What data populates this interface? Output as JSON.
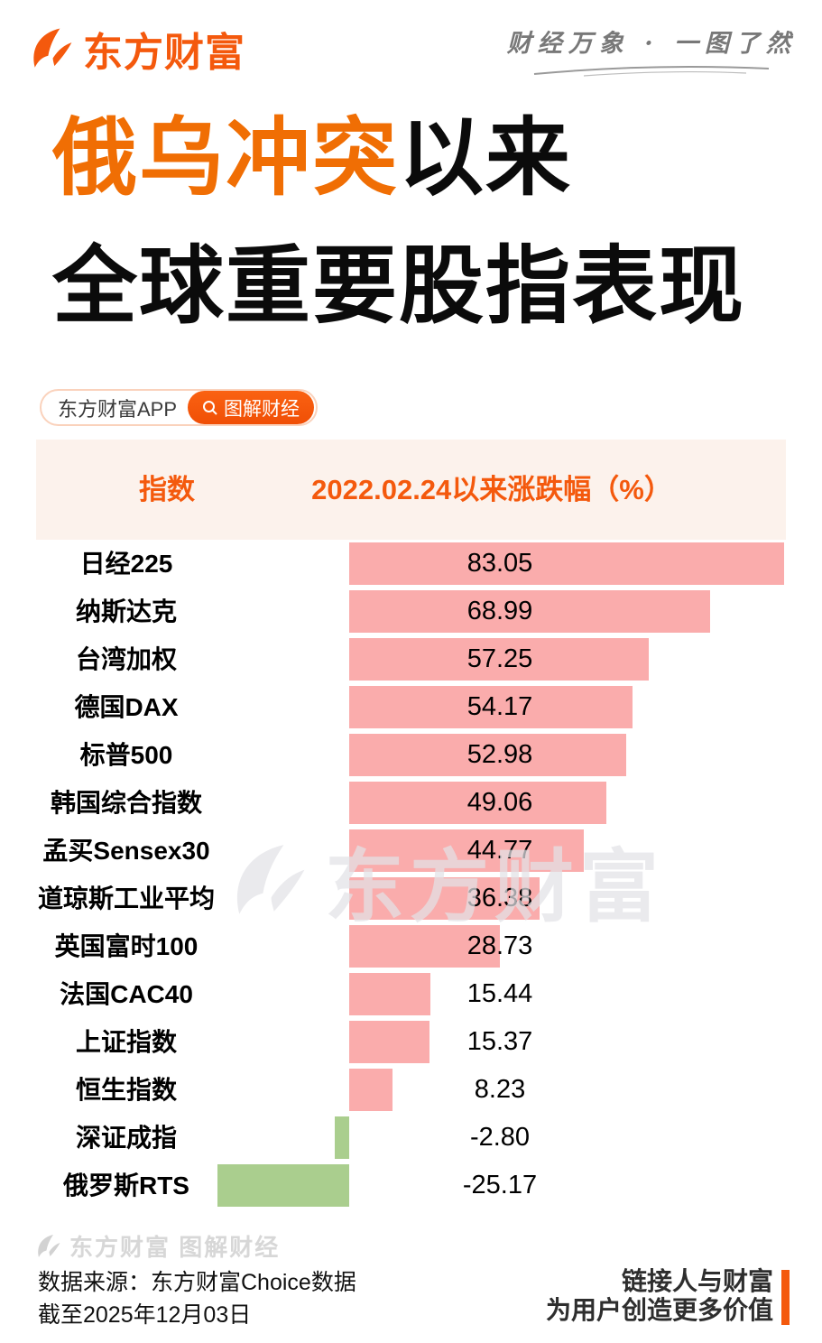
{
  "brand": {
    "logo_text": "东方财富",
    "tagline": "财经万象 · 一图了然"
  },
  "title": {
    "highlight": "俄乌冲突",
    "line1_rest": "以来",
    "line2": "全球重要股指表现"
  },
  "search": {
    "app_label": "东方财富APP",
    "button_label": "图解财经"
  },
  "table_header": {
    "col1": "指数",
    "col2": "2022.02.24以来涨跌幅（%）"
  },
  "chart_data": {
    "type": "bar",
    "orientation": "horizontal",
    "title": "俄乌冲突以来全球重要股指表现",
    "xlabel": "2022.02.24以来涨跌幅（%）",
    "categories": [
      "日经225",
      "纳斯达克",
      "台湾加权",
      "德国DAX",
      "标普500",
      "韩国综合指数",
      "孟买Sensex30",
      "道琼斯工业平均",
      "英国富时100",
      "法国CAC40",
      "上证指数",
      "恒生指数",
      "深证成指",
      "俄罗斯RTS"
    ],
    "values": [
      83.05,
      68.99,
      57.25,
      54.17,
      52.98,
      49.06,
      44.77,
      36.38,
      28.73,
      15.44,
      15.37,
      8.23,
      -2.8,
      -25.17
    ],
    "positive_color": "#FAACAC",
    "negative_color": "#AACE8E",
    "grid": false,
    "legend": false
  },
  "watermark": {
    "center_text": "东方财富",
    "footer_text": "东方财富 图解财经"
  },
  "footer": {
    "source_line1": "数据来源：东方财富Choice数据",
    "source_line2": "截至2025年12月03日",
    "slogan_line1": "链接人与财富",
    "slogan_line2": "为用户创造更多价值"
  },
  "colors": {
    "accent_orange": "#F4590D",
    "title_highlight": "#F06E04",
    "header_band_bg": "#FCF2EC",
    "positive_bar": "#FAACAC",
    "negative_bar": "#AACE8E"
  }
}
